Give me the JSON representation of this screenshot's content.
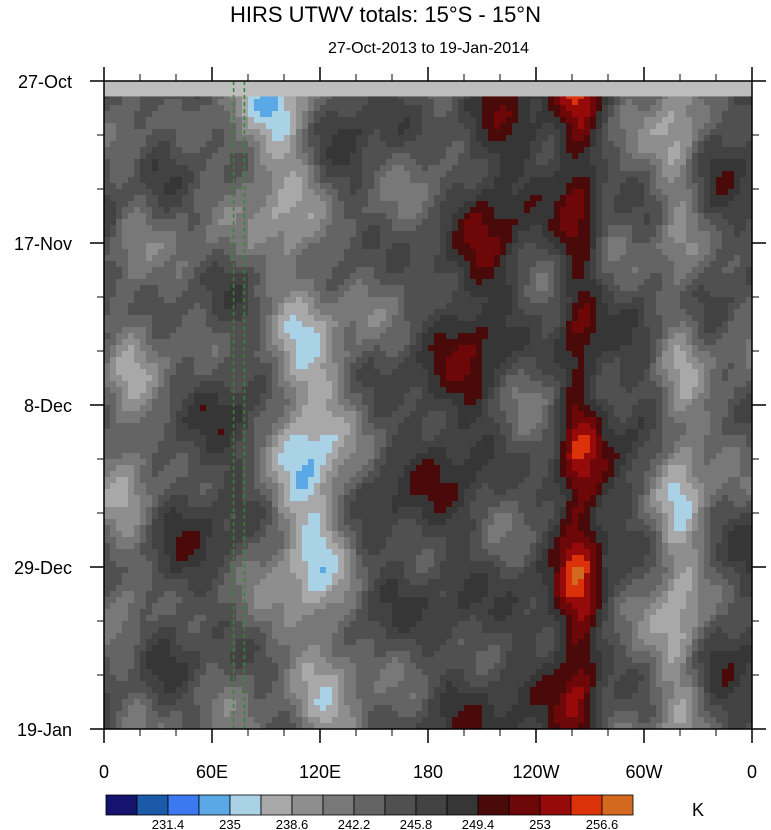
{
  "chart_data": {
    "type": "heatmap",
    "title": "HIRS UTWV totals: 15°S - 15°N",
    "subtitle": "27-Oct-2013 to 19-Jan-2014",
    "x_ticks": [
      {
        "lon": 0,
        "label": "0"
      },
      {
        "lon": 60,
        "label": "60E"
      },
      {
        "lon": 120,
        "label": "120E"
      },
      {
        "lon": 180,
        "label": "180"
      },
      {
        "lon": 240,
        "label": "120W"
      },
      {
        "lon": 300,
        "label": "60W"
      },
      {
        "lon": 360,
        "label": "0"
      }
    ],
    "y_ticks": [
      {
        "day": 0,
        "label": "27-Oct"
      },
      {
        "day": 21,
        "label": "17-Nov"
      },
      {
        "day": 42,
        "label": "8-Dec"
      },
      {
        "day": 63,
        "label": "29-Dec"
      },
      {
        "day": 84,
        "label": "19-Jan"
      }
    ],
    "xlim": [
      0,
      360
    ],
    "ylim_days": [
      0,
      84
    ],
    "missing_band_days": [
      0,
      2
    ],
    "reference_lines_lon": [
      72,
      78
    ],
    "reference_line_color": "#2e8b2e",
    "colorbar": {
      "colors": [
        "#14146e",
        "#1b5aa8",
        "#3c78f0",
        "#5aa8e6",
        "#aad2e6",
        "#a8a8a8",
        "#8e8e8e",
        "#787878",
        "#646464",
        "#505050",
        "#424242",
        "#363636",
        "#4a0a0a",
        "#6e0808",
        "#960a0a",
        "#dc320a",
        "#d2691e"
      ],
      "labels": [
        "231.4",
        "235",
        "238.6",
        "242.2",
        "245.8",
        "249.4",
        "253",
        "256.6"
      ],
      "unit": "K"
    },
    "field_features": [
      {
        "kind": "dry_band",
        "lon_range": [
          230,
          290
        ],
        "levels": "253-260"
      },
      {
        "kind": "moist_band",
        "lon_range": [
          60,
          160
        ],
        "levels": "231-242"
      },
      {
        "kind": "moist_band",
        "lon_range": [
          300,
          340
        ],
        "levels": "235-245"
      }
    ]
  }
}
